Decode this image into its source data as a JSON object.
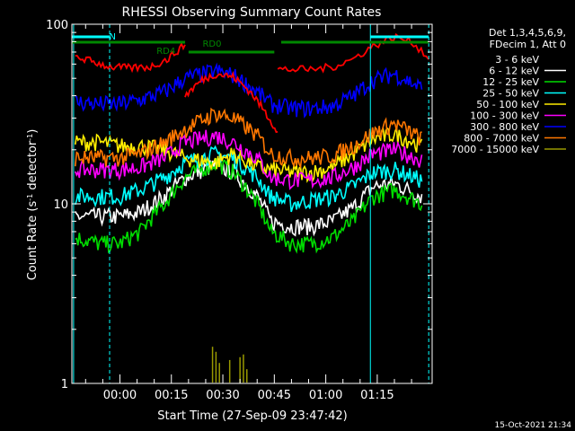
{
  "chart_data": {
    "type": "line",
    "title": "RHESSI Observing Summary Count Rates",
    "xlabel": "Start Time (27-Sep-09 23:47:42)",
    "ylabel_main": "Count Rate (s",
    "ylabel_sup": "-1",
    "ylabel_mid": " detector",
    "ylabel_sup2": "-1",
    "ylabel_end": ")",
    "yscale": "log",
    "ylim": [
      1,
      100
    ],
    "xlim_minutes": [
      -14,
      91
    ],
    "x_ticks": [
      {
        "label": "00:00",
        "min": 0
      },
      {
        "label": "00:15",
        "min": 15
      },
      {
        "label": "00:30",
        "min": 30
      },
      {
        "label": "00:45",
        "min": 45
      },
      {
        "label": "01:00",
        "min": 60
      },
      {
        "label": "01:15",
        "min": 75
      }
    ],
    "y_ticks": [
      {
        "label": "1",
        "value": 1
      },
      {
        "label": "10",
        "value": 10
      },
      {
        "label": "100",
        "value": 100
      }
    ],
    "legend_header": [
      "Det 1,3,4,5,6,9,",
      "FDecim 1, Att 0"
    ],
    "series": [
      {
        "name": "3 - 6 keV",
        "color": "#000000",
        "values": [
          8.5,
          8.5,
          8.5,
          9,
          11,
          14,
          16.5,
          15,
          11,
          8,
          7.5,
          7.5,
          8,
          9.5,
          12.5,
          13,
          11
        ]
      },
      {
        "name": "6 - 12 keV",
        "color": "#ffffff",
        "values": [
          8.5,
          8.5,
          8.5,
          9,
          11,
          14,
          16.5,
          15,
          11,
          8,
          7.5,
          7.5,
          8,
          9.5,
          12.5,
          13,
          11
        ]
      },
      {
        "name": "12 - 25 keV",
        "color": "#00dd00",
        "values": [
          6.5,
          6,
          6,
          7,
          10,
          14,
          17,
          15,
          10,
          7,
          6,
          6,
          6.5,
          8,
          11,
          12,
          10
        ]
      },
      {
        "name": "25 - 50 keV",
        "color": "#00ffff",
        "values": [
          11,
          11,
          11,
          12,
          14,
          17,
          19,
          18,
          14,
          11,
          10,
          10.5,
          11,
          12.5,
          15,
          15.5,
          13.5
        ]
      },
      {
        "name": "50 - 100 keV",
        "color": "#ffee00",
        "values": [
          22,
          22,
          21,
          21,
          20,
          18,
          17,
          19,
          16,
          15.5,
          15,
          15,
          16,
          19,
          23,
          24.5,
          21
        ]
      },
      {
        "name": "100 - 300 keV",
        "color": "#ff00ff",
        "values": [
          15.5,
          15.5,
          15.5,
          16,
          18,
          22,
          24,
          22,
          18,
          14,
          13.5,
          13.5,
          14,
          16,
          19,
          20,
          17.5
        ]
      },
      {
        "name": "300 - 800 keV",
        "color": "#0000ff",
        "values": [
          37,
          36,
          36,
          38,
          42,
          50,
          55,
          52,
          42,
          36,
          34,
          34,
          35,
          40,
          49,
          53,
          44
        ]
      },
      {
        "name": "800 - 7000 keV",
        "color": "#ff7700",
        "values": [
          18,
          18,
          18,
          19,
          22,
          26,
          32,
          30,
          24,
          19,
          18,
          18,
          18.5,
          21,
          25,
          28,
          23
        ]
      },
      {
        "name": "7000 - 15000 keV",
        "color": "#999900",
        "values": [
          0.9,
          0.9,
          0.9,
          0.9,
          0.9,
          1.2,
          1.6,
          1.1,
          0.9,
          0.9,
          0.9,
          0.9,
          0.9,
          0.9,
          0.9,
          0.9,
          0.9
        ]
      }
    ],
    "x_minutes": [
      -13,
      -6,
      0,
      6,
      13,
      19,
      28,
      33,
      40,
      44,
      50,
      56,
      62,
      68,
      74,
      80,
      88
    ],
    "red_trace": {
      "segments": [
        {
          "x": [
            -13,
            -8,
            -3,
            3,
            9,
            14,
            19
          ],
          "y": [
            66,
            62,
            58,
            57,
            58,
            64,
            77
          ]
        },
        {
          "x": [
            19,
            24,
            28,
            33,
            38,
            42,
            46
          ],
          "y": [
            40,
            49,
            53,
            51,
            42,
            33,
            25
          ]
        },
        {
          "x": [
            46,
            50,
            56,
            62,
            68,
            74,
            80,
            85,
            90
          ],
          "y": [
            56,
            56,
            56,
            58,
            64,
            76,
            85,
            80,
            65
          ]
        }
      ],
      "color": "#ff0000"
    },
    "annotations": {
      "attenuator_labels": [
        {
          "text": "RD4",
          "min": 18
        },
        {
          "text": "RD0",
          "min": 22
        }
      ],
      "n_label": {
        "text": "N",
        "min": -11
      },
      "date_stamp": "15-Oct-2021 21:34"
    },
    "colors": {
      "background": "#000000",
      "axis": "#ffffff",
      "night": "#00ffff",
      "saa": "#008800",
      "flare": "#ff0000"
    }
  }
}
